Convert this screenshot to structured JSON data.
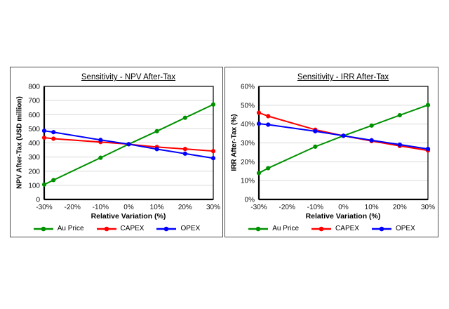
{
  "colors": {
    "au_price": "#009100",
    "capex": "#ff0000",
    "opex": "#0000ff",
    "grid": "#d9d9d9",
    "axis": "#000000",
    "panel_border": "#4d4d4d",
    "background": "#ffffff"
  },
  "chart_data": [
    {
      "type": "line",
      "title": "Sensitivity - NPV After-Tax",
      "xlabel": "Relative Variation (%)",
      "ylabel": "NPV After-Tax (USD million)",
      "x": [
        -30,
        -26.7,
        -10,
        0,
        10,
        20,
        30
      ],
      "x_ticks": [
        -30,
        -20,
        -10,
        0,
        10,
        20,
        30
      ],
      "x_tick_labels": [
        "-30%",
        "-20%",
        "-10%",
        "0%",
        "10%",
        "20%",
        "30%"
      ],
      "xlim": [
        -30,
        30
      ],
      "ylim": [
        0,
        800
      ],
      "y_ticks": [
        0,
        100,
        200,
        300,
        400,
        500,
        600,
        700,
        800
      ],
      "y_tick_labels": [
        "0",
        "100",
        "200",
        "300",
        "400",
        "500",
        "600",
        "700",
        "800"
      ],
      "grid": true,
      "legend_position": "bottom",
      "series": [
        {
          "name": "Au Price",
          "color": "#009100",
          "values": [
            105,
            137,
            295,
            391,
            483,
            578,
            672
          ]
        },
        {
          "name": "CAPEX",
          "color": "#ff0000",
          "values": [
            437,
            430,
            406,
            391,
            371,
            357,
            342
          ]
        },
        {
          "name": "OPEX",
          "color": "#0000ff",
          "values": [
            486,
            476,
            421,
            391,
            356,
            324,
            292
          ]
        }
      ]
    },
    {
      "type": "line",
      "title": "Sensitivity - IRR After-Tax",
      "xlabel": "Relative Variation (%)",
      "ylabel": "IRR After-Tax (%)",
      "x": [
        -30,
        -26.7,
        -10,
        0,
        10,
        20,
        30
      ],
      "x_ticks": [
        -30,
        -20,
        -10,
        0,
        10,
        20,
        30
      ],
      "x_tick_labels": [
        "-30%",
        "-20%",
        "-10%",
        "0%",
        "10%",
        "20%",
        "30%"
      ],
      "xlim": [
        -30,
        30
      ],
      "ylim": [
        0,
        60
      ],
      "y_ticks": [
        0,
        10,
        20,
        30,
        40,
        50,
        60
      ],
      "y_tick_labels": [
        "0%",
        "10%",
        "20%",
        "30%",
        "40%",
        "50%",
        "60%"
      ],
      "grid": true,
      "legend_position": "bottom",
      "series": [
        {
          "name": "Au Price",
          "color": "#009100",
          "values": [
            14,
            16.6,
            28,
            33.8,
            39.2,
            44.7,
            50.1
          ]
        },
        {
          "name": "CAPEX",
          "color": "#ff0000",
          "values": [
            46,
            44.2,
            37,
            33.8,
            31,
            28.4,
            26
          ]
        },
        {
          "name": "OPEX",
          "color": "#0000ff",
          "values": [
            40.2,
            39.7,
            36.2,
            33.8,
            31.4,
            29.1,
            26.8
          ]
        }
      ]
    }
  ]
}
